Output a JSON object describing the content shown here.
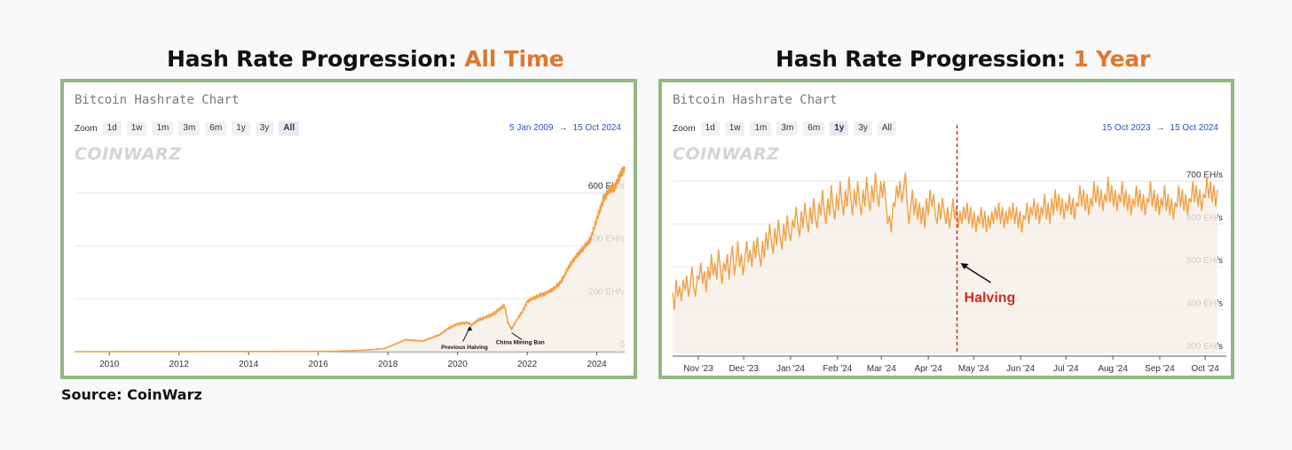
{
  "headings": {
    "left": {
      "prefix": "Hash Rate Progression: ",
      "accent": "All Time"
    },
    "right": {
      "prefix": "Hash Rate Progression: ",
      "accent": "1 Year"
    }
  },
  "source": "Source: CoinWarz",
  "colors": {
    "accent": "#e0772f",
    "line": "#f2a045",
    "frame": "#92b87f",
    "range_link": "#2a4fd6",
    "halving_marker": "#d42a20"
  },
  "chart_data": [
    {
      "type": "area",
      "title": "Bitcoin Hashrate Chart",
      "watermark": "COINWARZ",
      "zoom": {
        "label": "Zoom",
        "buttons": [
          "1d",
          "1w",
          "1m",
          "3m",
          "6m",
          "1y",
          "3y",
          "All"
        ],
        "selected": "All"
      },
      "range": {
        "from": "5 Jan 2009",
        "arrow": "→",
        "to": "15 Oct 2024"
      },
      "x_ticks": [
        "2010",
        "2012",
        "2014",
        "2016",
        "2018",
        "2020",
        "2022",
        "2024"
      ],
      "y_ticks": [
        "0",
        "200 EH/s",
        "400 EH/s",
        "600 EH/s"
      ],
      "ylim": [
        0,
        700
      ],
      "xlim": [
        2009.0,
        2024.8
      ],
      "grid": true,
      "unit": "EH/s",
      "series": [
        {
          "x": [
            2009.0,
            2016.0,
            2016.5,
            2017.0,
            2017.5,
            2017.9,
            2018.2,
            2018.5,
            2018.8,
            2019.0,
            2019.3,
            2019.5,
            2019.7,
            2020.0,
            2020.3,
            2020.4,
            2020.6,
            2020.8,
            2021.0,
            2021.2,
            2021.35,
            2021.45,
            2021.55,
            2021.7,
            2021.9,
            2022.0,
            2022.3,
            2022.5,
            2022.8,
            2023.0,
            2023.2,
            2023.4,
            2023.6,
            2023.8,
            2024.0,
            2024.2,
            2024.35,
            2024.5,
            2024.65,
            2024.8
          ],
          "y": [
            0,
            1,
            2,
            4,
            7,
            12,
            28,
            45,
            42,
            40,
            55,
            65,
            85,
            105,
            110,
            100,
            120,
            130,
            140,
            160,
            175,
            110,
            85,
            120,
            160,
            190,
            210,
            220,
            240,
            270,
            320,
            360,
            390,
            420,
            500,
            580,
            610,
            620,
            660,
            700
          ]
        }
      ],
      "annotations": [
        {
          "label": "Previous Halving",
          "x": 2020.35,
          "y": 110
        },
        {
          "label": "China Mining Ban",
          "x": 2021.5,
          "y": 85
        }
      ]
    },
    {
      "type": "area",
      "title": "Bitcoin Hashrate Chart",
      "watermark": "COINWARZ",
      "zoom": {
        "label": "Zoom",
        "buttons": [
          "1d",
          "1w",
          "1m",
          "3m",
          "6m",
          "1y",
          "3y",
          "All"
        ],
        "selected": "1y"
      },
      "range": {
        "from": "15 Oct 2023",
        "arrow": "→",
        "to": "15 Oct 2024"
      },
      "x_ticks": [
        "Nov '23",
        "Dec '23",
        "Jan '24",
        "Feb '24",
        "Mar '24",
        "Apr '24",
        "May '24",
        "Jun '24",
        "Jul '24",
        "Aug '24",
        "Sep '24",
        "Oct '24"
      ],
      "y_ticks": [
        "300 EH/s",
        "400 EH/s",
        "500 EH/s",
        "600 EH/s",
        "700 EH/s"
      ],
      "ylim": [
        300,
        740
      ],
      "grid": true,
      "unit": "EH/s",
      "series": [
        {
          "x_start": "15 Oct 2023",
          "x_end": "15 Oct 2024",
          "y": [
            440,
            400,
            470,
            430,
            455,
            420,
            470,
            445,
            480,
            430,
            460,
            500,
            455,
            430,
            480,
            470,
            510,
            460,
            490,
            440,
            500,
            470,
            530,
            480,
            510,
            470,
            540,
            500,
            460,
            510,
            490,
            530,
            470,
            520,
            550,
            480,
            510,
            560,
            500,
            530,
            480,
            520,
            560,
            510,
            540,
            500,
            560,
            520,
            570,
            530,
            500,
            560,
            520,
            580,
            540,
            600,
            560,
            530,
            590,
            550,
            610,
            570,
            540,
            600,
            560,
            620,
            580,
            560,
            610,
            590,
            640,
            600,
            570,
            630,
            590,
            650,
            610,
            580,
            640,
            600,
            660,
            610,
            590,
            650,
            620,
            680,
            630,
            600,
            660,
            620,
            690,
            640,
            610,
            670,
            630,
            700,
            650,
            620,
            680,
            640,
            710,
            660,
            620,
            680,
            640,
            700,
            650,
            620,
            680,
            640,
            710,
            660,
            630,
            690,
            650,
            720,
            670,
            640,
            700,
            660,
            700,
            650,
            600,
            620,
            580,
            650,
            640,
            690,
            660,
            700,
            650,
            680,
            720,
            650,
            600,
            640,
            680,
            620,
            660,
            610,
            650,
            600,
            640,
            590,
            660,
            620,
            680,
            640,
            670,
            620,
            600,
            650,
            610,
            660,
            630,
            600,
            640,
            590,
            620,
            660,
            610,
            640,
            590,
            630,
            600,
            640,
            610,
            650,
            600,
            640,
            590,
            630,
            580,
            620,
            600,
            640,
            590,
            630,
            580,
            620,
            590,
            630,
            600,
            640,
            610,
            650,
            600,
            640,
            590,
            630,
            600,
            640,
            610,
            650,
            600,
            640,
            590,
            630,
            580,
            620,
            610,
            650,
            600,
            640,
            620,
            660,
            610,
            650,
            600,
            640,
            620,
            670,
            610,
            650,
            600,
            660,
            620,
            680,
            630,
            670,
            620,
            660,
            610,
            650,
            630,
            670,
            620,
            660,
            610,
            650,
            640,
            690,
            640,
            680,
            630,
            670,
            620,
            660,
            640,
            700,
            650,
            690,
            640,
            680,
            630,
            670,
            650,
            710,
            650,
            690,
            640,
            680,
            630,
            670,
            650,
            700,
            640,
            680,
            630,
            670,
            620,
            660,
            640,
            690,
            640,
            680,
            630,
            670,
            620,
            660,
            650,
            700,
            640,
            680,
            630,
            670,
            620,
            660,
            640,
            690,
            630,
            670,
            620,
            660,
            610,
            650,
            640,
            690,
            640,
            680,
            630,
            670,
            620,
            660,
            650,
            700,
            650,
            690,
            640,
            680,
            630,
            670,
            660,
            710,
            660,
            700,
            650,
            690,
            640,
            680
          ]
        }
      ],
      "annotations": [
        {
          "label": "Halving",
          "date": "20 Apr 2024",
          "type": "vertical-line"
        }
      ]
    }
  ]
}
